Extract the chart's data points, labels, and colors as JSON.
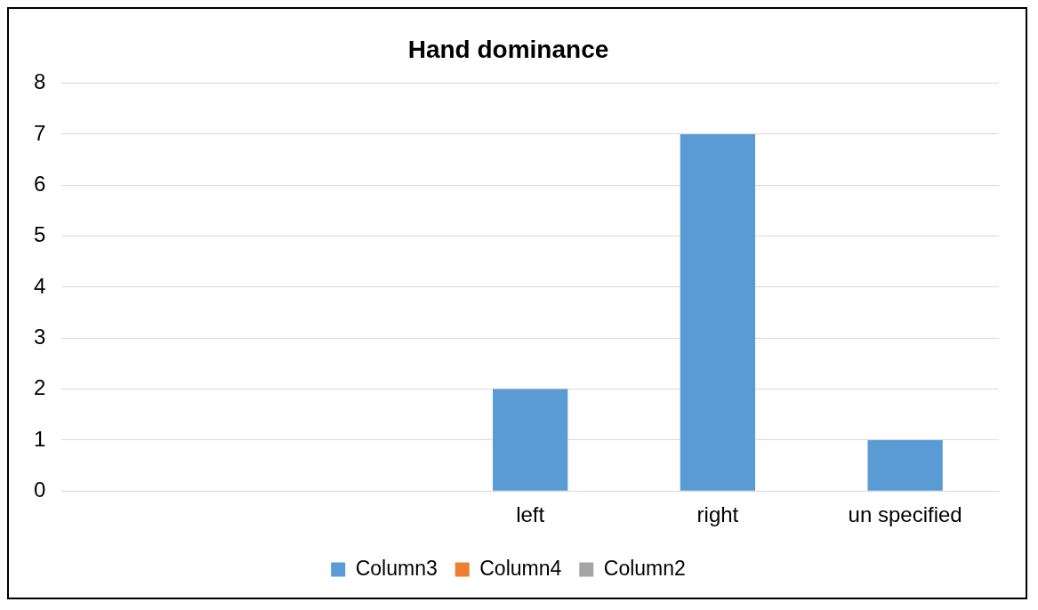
{
  "chart_data": {
    "type": "bar",
    "title": "Hand dominance",
    "categories": [
      null,
      null,
      "left",
      "right",
      "un specified"
    ],
    "series": [
      {
        "name": "Column3",
        "color": "#5b9bd5",
        "values": [
          null,
          null,
          2,
          7,
          1
        ]
      },
      {
        "name": "Column4",
        "color": "#ed7d31",
        "values": [
          null,
          null,
          null,
          null,
          null
        ]
      },
      {
        "name": "Column2",
        "color": "#a5a5a5",
        "values": [
          null,
          null,
          null,
          null,
          null
        ]
      }
    ],
    "ylim": [
      0,
      8
    ],
    "yticks": [
      0,
      1,
      2,
      3,
      4,
      5,
      6,
      7,
      8
    ],
    "grid": "y",
    "legend": "bottom"
  }
}
